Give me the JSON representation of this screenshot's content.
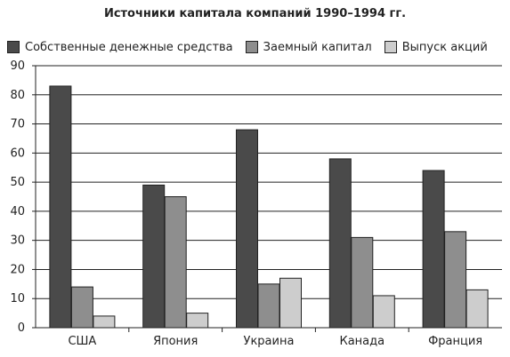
{
  "chart_data": {
    "type": "bar",
    "title": "Источники капитала компаний 1990–1994 гг.",
    "categories": [
      "США",
      "Япония",
      "Украина",
      "Канада",
      "Франция"
    ],
    "series": [
      {
        "name": "Собственные денежные средства",
        "color": "#4a4a4a",
        "values": [
          83,
          49,
          68,
          58,
          54
        ]
      },
      {
        "name": "Заемный капитал",
        "color": "#8e8e8e",
        "values": [
          14,
          45,
          15,
          31,
          33
        ]
      },
      {
        "name": "Выпуск акций",
        "color": "#cdcdcd",
        "values": [
          4,
          5,
          17,
          11,
          13
        ]
      }
    ],
    "ylim": [
      0,
      90
    ],
    "yticks": [
      0,
      10,
      20,
      30,
      40,
      50,
      60,
      70,
      80,
      90
    ],
    "grid": true,
    "legend_position": "top"
  }
}
